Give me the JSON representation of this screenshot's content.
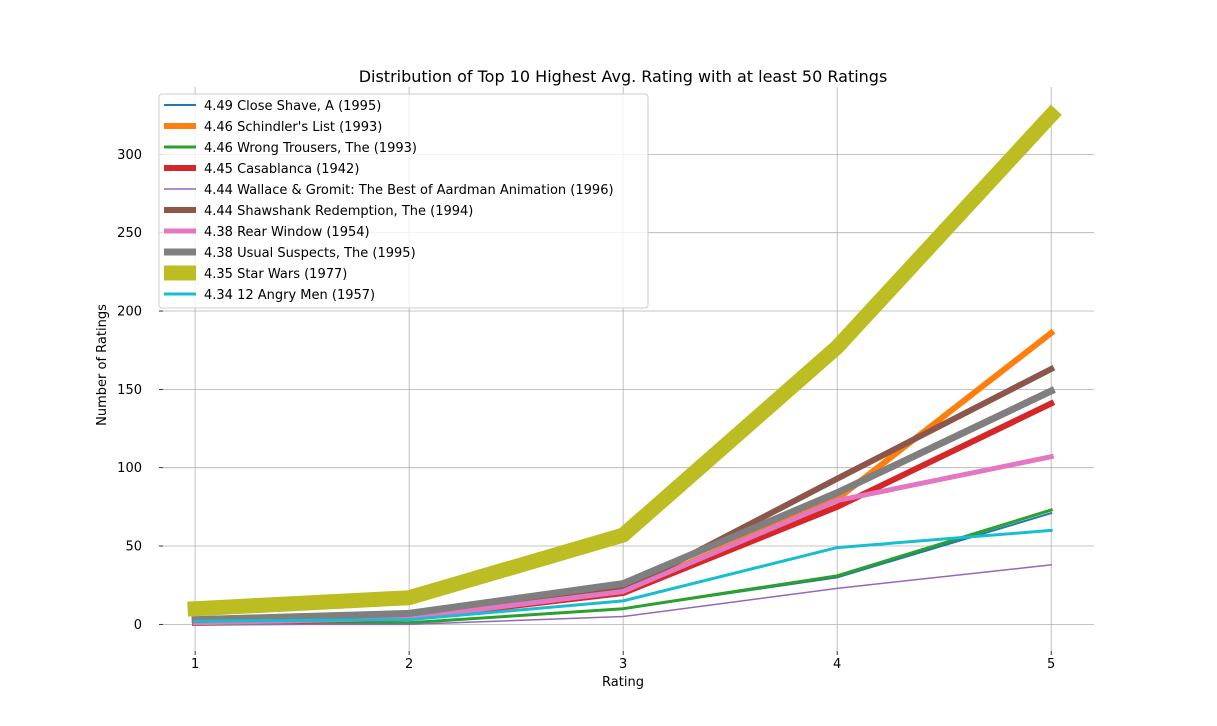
{
  "chart_data": {
    "type": "line",
    "title": "Distribution of Top 10 Highest Avg. Rating with at least 50 Ratings",
    "xlabel": "Rating",
    "ylabel": "Number of Ratings",
    "x": [
      1,
      2,
      3,
      4,
      5
    ],
    "xticks": [
      "1",
      "2",
      "3",
      "4",
      "5"
    ],
    "yticks": [
      "0",
      "50",
      "100",
      "150",
      "200",
      "250",
      "300"
    ],
    "ytick_values": [
      0,
      50,
      100,
      150,
      200,
      250,
      300
    ],
    "xlim": [
      0.85,
      5.2
    ],
    "ylim": [
      -17,
      343
    ],
    "grid": true,
    "legend_position": "top-left",
    "series": [
      {
        "name": "4.49 Close Shave, A (1995)",
        "color": "#1f77b4",
        "weight": 2,
        "values": [
          0,
          1,
          10,
          30,
          71
        ]
      },
      {
        "name": "4.46 Schindler's List (1993)",
        "color": "#ff7f0e",
        "weight": 6,
        "values": [
          1,
          5,
          21,
          80,
          186
        ]
      },
      {
        "name": "4.46 Wrong Trousers, The (1993)",
        "color": "#2ca02c",
        "weight": 3,
        "values": [
          0,
          1,
          10,
          31,
          73
        ]
      },
      {
        "name": "4.45 Casablanca (1942)",
        "color": "#d62728",
        "weight": 6,
        "values": [
          1,
          4,
          20,
          75,
          141
        ]
      },
      {
        "name": "4.44 Wallace & Gromit: The Best of Aardman Animation (1996)",
        "color": "#9467bd",
        "weight": 1.5,
        "values": [
          0,
          0,
          5,
          23,
          38
        ]
      },
      {
        "name": "4.44 Shawshank Redemption, The (1994)",
        "color": "#8c564b",
        "weight": 6,
        "values": [
          1,
          5,
          22,
          93,
          163
        ]
      },
      {
        "name": "4.38 Rear Window (1954)",
        "color": "#e377c2",
        "weight": 5,
        "values": [
          1,
          4,
          21,
          79,
          107
        ]
      },
      {
        "name": "4.38 Usual Suspects, The (1995)",
        "color": "#7f7f7f",
        "weight": 7,
        "values": [
          3,
          7,
          26,
          84,
          149
        ]
      },
      {
        "name": "4.35 Star Wars (1977)",
        "color": "#bcbd22",
        "weight": 15,
        "values": [
          10,
          17,
          57,
          177,
          325
        ]
      },
      {
        "name": "4.34 12 Angry Men (1957)",
        "color": "#17becf",
        "weight": 3,
        "values": [
          2,
          3,
          15,
          49,
          60
        ]
      }
    ]
  }
}
